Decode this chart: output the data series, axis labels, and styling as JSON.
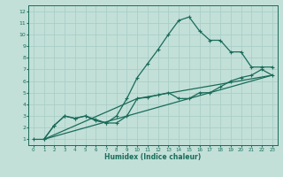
{
  "xlabel": "Humidex (Indice chaleur)",
  "bg_color": "#c2e0d8",
  "grid_color": "#aacfc7",
  "line_color": "#1a6b5a",
  "xlim": [
    -0.5,
    23.5
  ],
  "ylim": [
    0.5,
    12.5
  ],
  "xticks": [
    0,
    1,
    2,
    3,
    4,
    5,
    6,
    7,
    8,
    9,
    10,
    11,
    12,
    13,
    14,
    15,
    16,
    17,
    18,
    19,
    20,
    21,
    22,
    23
  ],
  "yticks": [
    1,
    2,
    3,
    4,
    5,
    6,
    7,
    8,
    9,
    10,
    11,
    12
  ],
  "line1_x": [
    0,
    1,
    2,
    3,
    4,
    5,
    6,
    7,
    8,
    9,
    10,
    11,
    12,
    13,
    14,
    15,
    16,
    17,
    18,
    19,
    20,
    21,
    22,
    23
  ],
  "line1_y": [
    1.0,
    1.0,
    2.2,
    3.0,
    2.8,
    3.0,
    2.6,
    2.4,
    3.0,
    4.5,
    6.3,
    7.5,
    8.7,
    10.0,
    11.2,
    11.5,
    10.3,
    9.5,
    9.5,
    8.5,
    8.5,
    7.2,
    7.2,
    7.2
  ],
  "line2_x": [
    1,
    2,
    3,
    4,
    5,
    6,
    7,
    8,
    9,
    10,
    11,
    12,
    13,
    14,
    15,
    16,
    17,
    18,
    19,
    20,
    21,
    22,
    23
  ],
  "line2_y": [
    1.0,
    2.2,
    3.0,
    2.8,
    3.0,
    2.7,
    2.4,
    2.4,
    3.0,
    4.5,
    4.6,
    4.8,
    5.0,
    4.5,
    4.5,
    5.0,
    5.0,
    5.5,
    6.0,
    6.3,
    6.5,
    7.0,
    6.5
  ],
  "line3_x": [
    1,
    23
  ],
  "line3_y": [
    1.0,
    6.5
  ],
  "line4_x": [
    1,
    10,
    23
  ],
  "line4_y": [
    1.0,
    4.5,
    6.5
  ]
}
